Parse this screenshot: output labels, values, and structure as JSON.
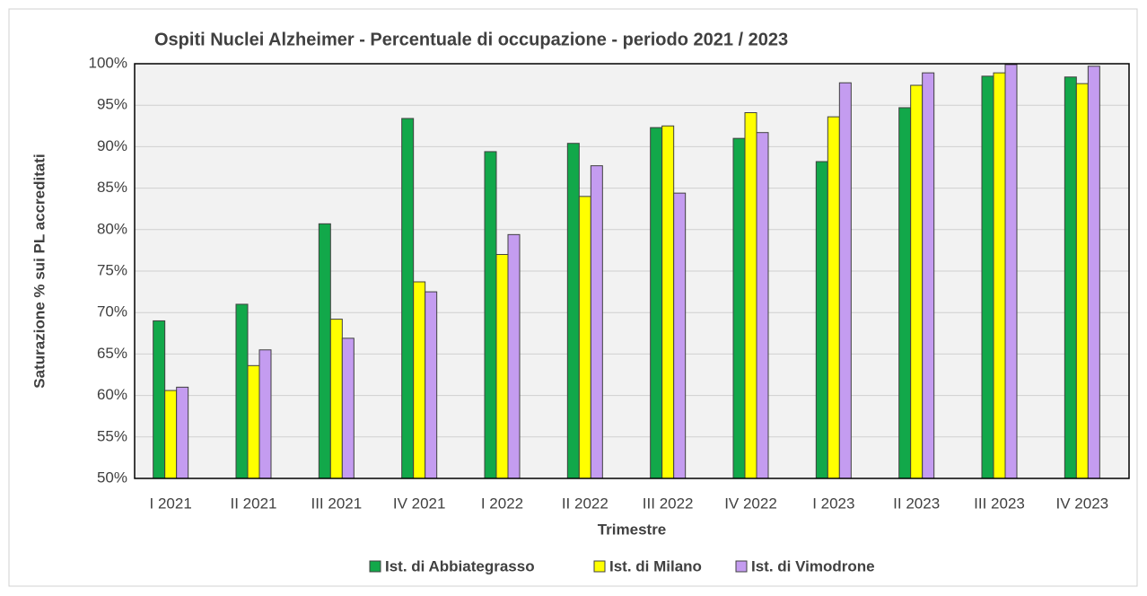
{
  "chart_data": {
    "type": "bar",
    "title": "Ospiti Nuclei Alzheimer - Percentuale di occupazione - periodo 2021 / 2023",
    "x_label": "Trimestre",
    "y_label": "Saturazione % sui PL accreditati",
    "categories": [
      "I 2021",
      "II 2021",
      "III 2021",
      "IV 2021",
      "I 2022",
      "II 2022",
      "III 2022",
      "IV 2022",
      "I 2023",
      "II 2023",
      "III 2023",
      "IV 2023"
    ],
    "series": [
      {
        "name": "Ist. di Abbiategrasso",
        "color": "#12a84a",
        "values": [
          69.0,
          71.0,
          80.7,
          93.4,
          89.4,
          90.4,
          92.3,
          91.0,
          88.2,
          94.7,
          98.5,
          98.4
        ]
      },
      {
        "name": "Ist. di Milano",
        "color": "#ffff00",
        "values": [
          60.6,
          63.6,
          69.2,
          73.7,
          77.0,
          84.0,
          92.5,
          94.1,
          93.6,
          97.4,
          98.9,
          97.6
        ]
      },
      {
        "name": "Ist. di Vimodrone",
        "color": "#c49cf0",
        "values": [
          61.0,
          65.5,
          66.9,
          72.5,
          79.4,
          87.7,
          84.4,
          91.7,
          97.7,
          98.9,
          99.9,
          99.7
        ]
      }
    ],
    "ylim": [
      50,
      100
    ],
    "yticks": [
      {
        "value": 50,
        "label": "50%"
      },
      {
        "value": 55,
        "label": "55%"
      },
      {
        "value": 60,
        "label": "60%"
      },
      {
        "value": 65,
        "label": "65%"
      },
      {
        "value": 70,
        "label": "70%"
      },
      {
        "value": 75,
        "label": "75%"
      },
      {
        "value": 80,
        "label": "80%"
      },
      {
        "value": 85,
        "label": "85%"
      },
      {
        "value": 90,
        "label": "90%"
      },
      {
        "value": 95,
        "label": "95%"
      },
      {
        "value": 100,
        "label": "100%"
      }
    ],
    "grid": true,
    "legend": "bottom"
  }
}
